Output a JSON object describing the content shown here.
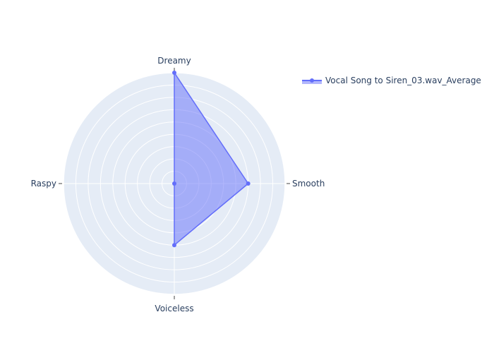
{
  "chart_data": {
    "type": "radar",
    "categories": [
      "Dreamy",
      "Smooth",
      "Voiceless",
      "Raspy"
    ],
    "series": [
      {
        "name": "Vocal Song to Siren_03.wav_Average",
        "values": [
          0.9,
          0.6,
          0.5,
          0.0
        ]
      }
    ],
    "rlim": [
      0,
      0.9
    ],
    "grid": true,
    "legend_position": "top-right",
    "colors": {
      "series": "#636efa",
      "fill": "rgba(99,110,250,0.5)",
      "polar_bg": "#e5ecf6",
      "grid": "#ffffff",
      "text": "#2a3f5f"
    }
  }
}
